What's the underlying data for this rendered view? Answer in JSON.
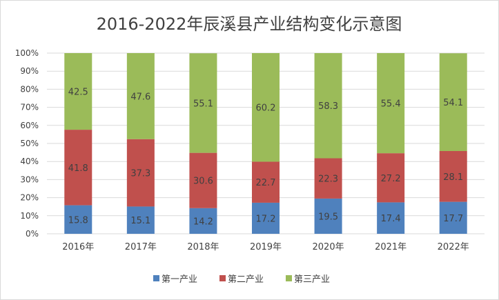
{
  "chart_data": {
    "type": "bar",
    "stacked": true,
    "title": "2016-2022年辰溪县产业结构变化示意图",
    "categories": [
      "2016年",
      "2017年",
      "2018年",
      "2019年",
      "2020年",
      "2021年",
      "2022年"
    ],
    "series": [
      {
        "name": "第一产业",
        "color": "#4f81bd",
        "values": [
          15.8,
          15.1,
          14.2,
          17.2,
          19.5,
          17.4,
          17.7
        ]
      },
      {
        "name": "第二产业",
        "color": "#c0504d",
        "values": [
          41.8,
          37.3,
          30.6,
          22.7,
          22.3,
          27.2,
          28.1
        ]
      },
      {
        "name": "第三产业",
        "color": "#9bbb59",
        "values": [
          42.5,
          47.6,
          55.1,
          60.2,
          58.3,
          55.4,
          54.1
        ]
      }
    ],
    "yticks": [
      "0%",
      "10%",
      "20%",
      "30%",
      "40%",
      "50%",
      "60%",
      "70%",
      "80%",
      "90%",
      "100%"
    ],
    "ylim": [
      0,
      100
    ],
    "grid": true,
    "legend": "bottom"
  }
}
